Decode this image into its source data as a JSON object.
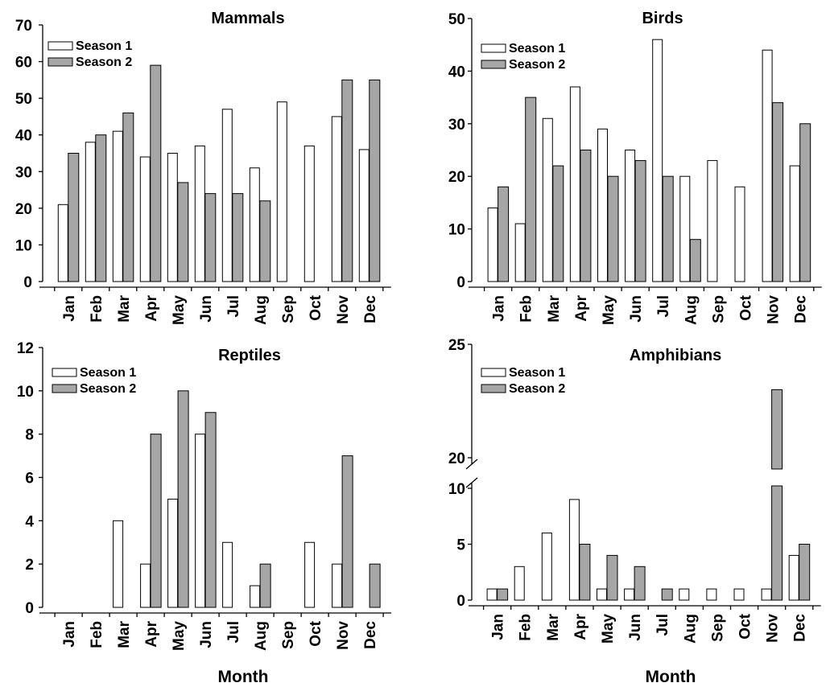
{
  "chart_data": [
    {
      "type": "bar",
      "title": "Mammals",
      "xlabel": "",
      "ylabel": "",
      "ylim": [
        0,
        70
      ],
      "yticks": [
        0,
        10,
        20,
        30,
        40,
        50,
        60,
        70
      ],
      "categories": [
        "Jan",
        "Feb",
        "Mar",
        "Apr",
        "May",
        "Jun",
        "Jul",
        "Aug",
        "Sep",
        "Oct",
        "Nov",
        "Dec"
      ],
      "legend_position": "top-left",
      "series": [
        {
          "name": "Season 1",
          "color": "#ffffff",
          "values": [
            21,
            38,
            41,
            34,
            35,
            37,
            47,
            31,
            49,
            37,
            45,
            36
          ]
        },
        {
          "name": "Season 2",
          "color": "#a6a6a6",
          "values": [
            35,
            40,
            46,
            59,
            27,
            24,
            24,
            22,
            0,
            0,
            55,
            55
          ]
        }
      ]
    },
    {
      "type": "bar",
      "title": "Birds",
      "xlabel": "",
      "ylabel": "",
      "ylim": [
        0,
        50
      ],
      "yticks": [
        0,
        10,
        20,
        30,
        40,
        50
      ],
      "categories": [
        "Jan",
        "Feb",
        "Mar",
        "Apr",
        "May",
        "Jun",
        "Jul",
        "Aug",
        "Sep",
        "Oct",
        "Nov",
        "Dec"
      ],
      "legend_position": "top-left",
      "series": [
        {
          "name": "Season 1",
          "color": "#ffffff",
          "values": [
            14,
            11,
            31,
            37,
            29,
            25,
            46,
            20,
            23,
            18,
            44,
            22
          ]
        },
        {
          "name": "Season 2",
          "color": "#a6a6a6",
          "values": [
            18,
            35,
            22,
            25,
            20,
            23,
            20,
            8,
            0,
            0,
            34,
            30
          ]
        }
      ]
    },
    {
      "type": "bar",
      "title": "Reptiles",
      "xlabel": "Month",
      "ylabel": "",
      "ylim": [
        0,
        12
      ],
      "yticks": [
        0,
        2,
        4,
        6,
        8,
        10,
        12
      ],
      "categories": [
        "Jan",
        "Feb",
        "Mar",
        "Apr",
        "May",
        "Jun",
        "Jul",
        "Aug",
        "Sep",
        "Oct",
        "Nov",
        "Dec"
      ],
      "legend_position": "top-left",
      "series": [
        {
          "name": "Season 1",
          "color": "#ffffff",
          "values": [
            0,
            0,
            4,
            2,
            5,
            8,
            3,
            1,
            0,
            3,
            2,
            0
          ]
        },
        {
          "name": "Season 2",
          "color": "#a6a6a6",
          "values": [
            0,
            0,
            0,
            8,
            10,
            9,
            0,
            2,
            0,
            0,
            7,
            2
          ]
        }
      ]
    },
    {
      "type": "bar",
      "title": "Amphibians",
      "xlabel": "Month",
      "ylabel": "",
      "ylim": [
        0,
        25
      ],
      "axis_break": [
        10,
        20
      ],
      "yticks": [
        0,
        5,
        10,
        20,
        25
      ],
      "categories": [
        "Jan",
        "Feb",
        "Mar",
        "Apr",
        "May",
        "Jun",
        "Jul",
        "Aug",
        "Sep",
        "Oct",
        "Nov",
        "Dec"
      ],
      "legend_position": "top-left",
      "series": [
        {
          "name": "Season 1",
          "color": "#ffffff",
          "values": [
            1,
            3,
            6,
            9,
            1,
            1,
            0,
            1,
            1,
            1,
            1,
            4
          ]
        },
        {
          "name": "Season 2",
          "color": "#a6a6a6",
          "values": [
            1,
            0,
            0,
            5,
            4,
            3,
            1,
            0,
            0,
            0,
            23,
            5
          ]
        }
      ]
    }
  ]
}
